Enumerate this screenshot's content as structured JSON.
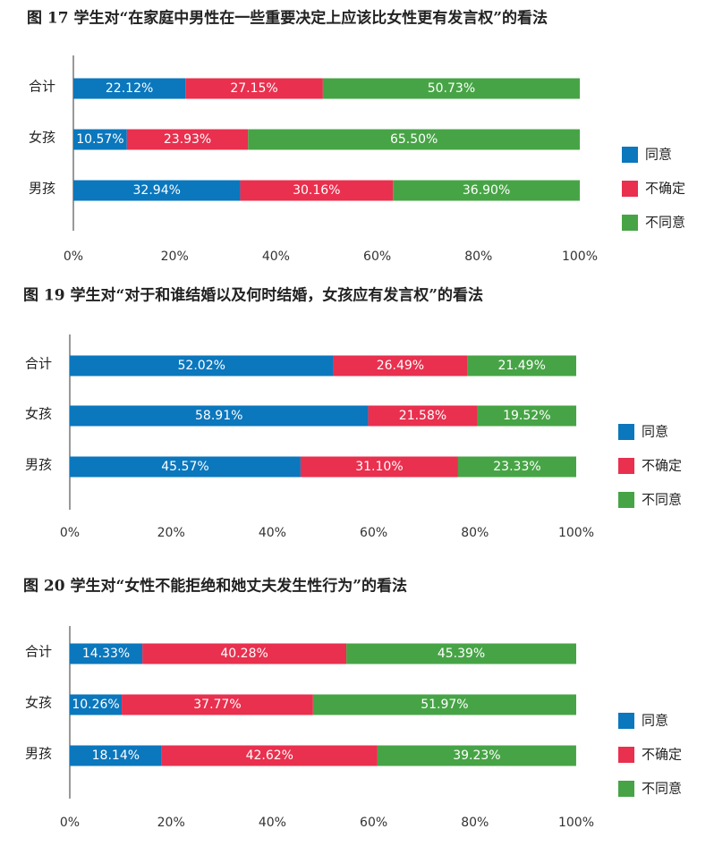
{
  "chart_data": [
    {
      "type": "bar",
      "orientation": "horizontal",
      "stacked": true,
      "title": "图 17 学生对“在家庭中男性在一些重要决定上应该比女性更有发言权”的看法",
      "categories": [
        "合计",
        "女孩",
        "男孩"
      ],
      "series": [
        {
          "name": "同意",
          "color": "#0b77bd",
          "values": [
            22.12,
            10.57,
            32.94
          ],
          "value_labels": [
            "22.12%",
            "10.57%",
            "32.94%"
          ]
        },
        {
          "name": "不确定",
          "color": "#e9304e",
          "values": [
            27.15,
            23.93,
            30.16
          ],
          "value_labels": [
            "27.15%",
            "23.93%",
            "30.16%"
          ]
        },
        {
          "name": "不同意",
          "color": "#47a446",
          "values": [
            50.73,
            65.5,
            36.9
          ],
          "value_labels": [
            "50.73%",
            "65.50%",
            "36.90%"
          ]
        }
      ],
      "xlim": [
        0,
        100
      ],
      "xticks": [
        {
          "value": 0,
          "label": "0%"
        },
        {
          "value": 20,
          "label": "20%"
        },
        {
          "value": 40,
          "label": "40%"
        },
        {
          "value": 60,
          "label": "60%"
        },
        {
          "value": 80,
          "label": "80%"
        },
        {
          "value": 100,
          "label": "100%"
        }
      ],
      "legend": "right"
    },
    {
      "type": "bar",
      "orientation": "horizontal",
      "stacked": true,
      "title": "图 19 学生对“对于和谁结婚以及何时结婚，女孩应有发言权”的看法",
      "categories": [
        "合计",
        "女孩",
        "男孩"
      ],
      "series": [
        {
          "name": "同意",
          "color": "#0b77bd",
          "values": [
            52.02,
            58.91,
            45.57
          ],
          "value_labels": [
            "52.02%",
            "58.91%",
            "45.57%"
          ]
        },
        {
          "name": "不确定",
          "color": "#e9304e",
          "values": [
            26.49,
            21.58,
            31.1
          ],
          "value_labels": [
            "26.49%",
            "21.58%",
            "31.10%"
          ]
        },
        {
          "name": "不同意",
          "color": "#47a446",
          "values": [
            21.49,
            19.52,
            23.33
          ],
          "value_labels": [
            "21.49%",
            "19.52%",
            "23.33%"
          ]
        }
      ],
      "xlim": [
        0,
        100
      ],
      "xticks": [
        {
          "value": 0,
          "label": "0%"
        },
        {
          "value": 20,
          "label": "20%"
        },
        {
          "value": 40,
          "label": "40%"
        },
        {
          "value": 60,
          "label": "60%"
        },
        {
          "value": 80,
          "label": "80%"
        },
        {
          "value": 100,
          "label": "100%"
        }
      ],
      "legend": "right"
    },
    {
      "type": "bar",
      "orientation": "horizontal",
      "stacked": true,
      "title": "图 20 学生对“女性不能拒绝和她丈夫发生性行为”的看法",
      "categories": [
        "合计",
        "女孩",
        "男孩"
      ],
      "series": [
        {
          "name": "同意",
          "color": "#0b77bd",
          "values": [
            14.33,
            10.26,
            18.14
          ],
          "value_labels": [
            "14.33%",
            "10.26%",
            "18.14%"
          ]
        },
        {
          "name": "不确定",
          "color": "#e9304e",
          "values": [
            40.28,
            37.77,
            42.62
          ],
          "value_labels": [
            "40.28%",
            "37.77%",
            "42.62%"
          ]
        },
        {
          "name": "不同意",
          "color": "#47a446",
          "values": [
            45.39,
            51.97,
            39.23
          ],
          "value_labels": [
            "45.39%",
            "51.97%",
            "39.23%"
          ]
        }
      ],
      "xlim": [
        0,
        100
      ],
      "xticks": [
        {
          "value": 0,
          "label": "0%"
        },
        {
          "value": 20,
          "label": "20%"
        },
        {
          "value": 40,
          "label": "40%"
        },
        {
          "value": 60,
          "label": "60%"
        },
        {
          "value": 80,
          "label": "80%"
        },
        {
          "value": 100,
          "label": "100%"
        }
      ],
      "legend": "right"
    }
  ]
}
